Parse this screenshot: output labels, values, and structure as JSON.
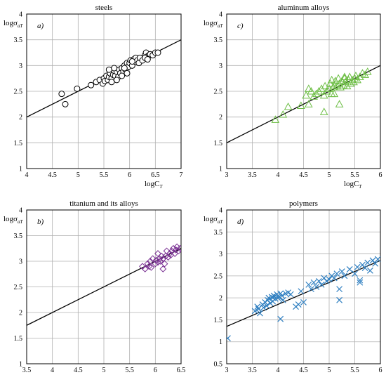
{
  "chart_data": [
    {
      "type": "scatter",
      "title": "steels",
      "panel_label": "a)",
      "xlabel": "logC",
      "xlabel_sub": "T",
      "ylabel": "logσ",
      "ylabel_sub": "aT",
      "xlim": [
        4,
        7
      ],
      "ylim": [
        1,
        4
      ],
      "xticks": [
        "4",
        "4.5",
        "5",
        "5.5",
        "6",
        "6.5",
        "7"
      ],
      "yticks": [
        "1",
        "1.5",
        "2",
        "2.5",
        "3",
        "3.5",
        "4"
      ],
      "grid": true,
      "marker": "circle",
      "color": "#000000",
      "fit_line": {
        "x": [
          4,
          7
        ],
        "y": [
          2.0,
          3.5
        ]
      },
      "x": [
        4.68,
        4.75,
        4.98,
        5.25,
        5.35,
        5.42,
        5.48,
        5.5,
        5.52,
        5.55,
        5.58,
        5.6,
        5.62,
        5.65,
        5.68,
        5.7,
        5.72,
        5.75,
        5.78,
        5.8,
        5.82,
        5.85,
        5.88,
        5.9,
        5.92,
        5.95,
        5.98,
        6.0,
        6.02,
        6.05,
        6.08,
        6.1,
        6.12,
        6.15,
        6.18,
        6.2,
        6.25,
        6.3,
        6.32,
        6.35,
        6.38,
        6.4,
        6.45,
        6.5,
        6.55,
        5.6,
        5.7,
        5.75,
        5.85,
        5.95,
        6.3,
        6.35,
        5.65,
        5.9,
        6.05
      ],
      "y": [
        2.45,
        2.25,
        2.55,
        2.62,
        2.68,
        2.72,
        2.65,
        2.75,
        2.7,
        2.8,
        2.72,
        2.78,
        2.85,
        2.75,
        2.82,
        2.9,
        2.8,
        2.88,
        2.78,
        2.92,
        2.85,
        2.95,
        2.88,
        3.0,
        2.92,
        3.05,
        2.98,
        3.05,
        3.1,
        3.0,
        3.12,
        3.08,
        3.15,
        3.1,
        3.05,
        3.15,
        3.1,
        3.2,
        3.25,
        3.18,
        3.2,
        3.22,
        3.2,
        3.25,
        3.25,
        2.92,
        2.95,
        2.72,
        2.8,
        2.85,
        3.15,
        3.12,
        2.68,
        2.95,
        3.08
      ]
    },
    {
      "type": "scatter",
      "title": "aluminum alloys",
      "panel_label": "c)",
      "xlabel": "logC",
      "xlabel_sub": "T",
      "ylabel": "logσ",
      "ylabel_sub": "aT",
      "xlim": [
        3,
        6
      ],
      "ylim": [
        1,
        4
      ],
      "xticks": [
        "3",
        "3.5",
        "4",
        "4.5",
        "5",
        "5.5",
        "6"
      ],
      "yticks": [
        "1",
        "1.5",
        "2",
        "2.5",
        "3",
        "3.5",
        "4"
      ],
      "grid": true,
      "marker": "triangle",
      "color": "#6dbe45",
      "fit_line": {
        "x": [
          3,
          6
        ],
        "y": [
          1.5,
          3.0
        ]
      },
      "x": [
        3.95,
        4.1,
        4.2,
        4.45,
        4.55,
        4.6,
        4.65,
        4.7,
        4.75,
        4.8,
        4.85,
        4.9,
        4.92,
        4.95,
        5.0,
        5.02,
        5.05,
        5.08,
        5.1,
        5.12,
        5.15,
        5.18,
        5.2,
        5.22,
        5.25,
        5.28,
        5.3,
        5.32,
        5.35,
        5.38,
        5.4,
        5.42,
        5.45,
        5.48,
        5.5,
        5.52,
        5.55,
        5.6,
        5.65,
        5.7,
        5.75,
        5.2,
        4.9,
        4.6,
        5.05,
        5.3,
        5.1
      ],
      "y": [
        1.95,
        2.05,
        2.2,
        2.22,
        2.42,
        2.25,
        2.5,
        2.4,
        2.45,
        2.5,
        2.55,
        2.42,
        2.6,
        2.5,
        2.55,
        2.65,
        2.45,
        2.58,
        2.62,
        2.7,
        2.6,
        2.75,
        2.65,
        2.58,
        2.7,
        2.62,
        2.75,
        2.68,
        2.6,
        2.72,
        2.78,
        2.65,
        2.72,
        2.68,
        2.75,
        2.8,
        2.72,
        2.78,
        2.85,
        2.82,
        2.88,
        2.25,
        2.1,
        2.55,
        2.72,
        2.78,
        2.45
      ]
    },
    {
      "type": "scatter",
      "title": "titanium and its alloys",
      "panel_label": "b)",
      "xlabel": "logC",
      "xlabel_sub": "T",
      "ylabel": "logσ",
      "ylabel_sub": "aT",
      "xlim": [
        3.5,
        6.5
      ],
      "ylim": [
        1,
        4
      ],
      "xticks": [
        "3.5",
        "4",
        "4.5",
        "5",
        "5.5",
        "6",
        "6.5"
      ],
      "yticks": [
        "1",
        "1.5",
        "2",
        "2.5",
        "3",
        "3.5",
        "4"
      ],
      "grid": true,
      "marker": "diamond",
      "color": "#7b3294",
      "fit_line": {
        "x": [
          3.5,
          6.5
        ],
        "y": [
          1.75,
          3.25
        ]
      },
      "x": [
        5.75,
        5.8,
        5.85,
        5.9,
        5.92,
        5.95,
        6.0,
        6.02,
        6.05,
        6.08,
        6.1,
        6.12,
        6.15,
        6.18,
        6.2,
        6.22,
        6.25,
        6.28,
        6.3,
        6.32,
        6.35,
        6.38,
        6.4,
        6.42,
        6.45,
        6.48,
        6.15,
        5.88,
        6.05
      ],
      "y": [
        2.9,
        2.85,
        2.95,
        3.0,
        2.88,
        3.05,
        2.95,
        3.02,
        2.98,
        3.05,
        3.0,
        3.1,
        3.05,
        2.95,
        3.1,
        3.2,
        3.08,
        3.15,
        3.12,
        3.2,
        3.25,
        3.15,
        3.22,
        3.28,
        3.2,
        3.25,
        2.85,
        2.9,
        3.15
      ]
    },
    {
      "type": "scatter",
      "title": "polymers",
      "panel_label": "d)",
      "xlabel": "logC",
      "xlabel_sub": "T",
      "ylabel": "logσ",
      "ylabel_sub": "aT",
      "xlim": [
        3,
        6
      ],
      "ylim": [
        0.5,
        4
      ],
      "xticks": [
        "3",
        "3.5",
        "4",
        "4.5",
        "5",
        "5.5",
        "6"
      ],
      "yticks": [
        "0.5",
        "1",
        "1.5",
        "2",
        "2.5",
        "3",
        "3.5",
        "4"
      ],
      "grid": true,
      "marker": "cross",
      "color": "#2f7fc1",
      "fit_line": {
        "x": [
          3,
          6
        ],
        "y": [
          1.35,
          2.85
        ]
      },
      "x": [
        3.02,
        3.55,
        3.6,
        3.62,
        3.65,
        3.7,
        3.72,
        3.75,
        3.78,
        3.8,
        3.82,
        3.85,
        3.88,
        3.9,
        3.92,
        3.95,
        3.98,
        4.0,
        4.02,
        4.05,
        4.08,
        4.1,
        4.15,
        4.2,
        4.25,
        4.35,
        4.45,
        4.5,
        4.6,
        4.65,
        4.7,
        4.75,
        4.8,
        4.85,
        4.9,
        4.95,
        5.0,
        5.05,
        5.1,
        5.15,
        5.2,
        5.25,
        5.3,
        5.4,
        5.5,
        5.55,
        5.6,
        5.65,
        5.7,
        5.75,
        5.8,
        5.85,
        5.9,
        5.95,
        4.05,
        5.2,
        5.6,
        3.9,
        4.4
      ],
      "y": [
        1.08,
        1.7,
        1.8,
        1.75,
        1.65,
        1.85,
        1.78,
        1.9,
        1.82,
        1.95,
        2.0,
        1.88,
        2.02,
        1.92,
        2.05,
        1.98,
        2.08,
        2.0,
        2.02,
        2.1,
        2.05,
        1.95,
        2.1,
        2.12,
        2.08,
        1.8,
        2.15,
        1.9,
        2.3,
        2.2,
        2.35,
        2.25,
        2.38,
        2.3,
        2.45,
        2.38,
        2.42,
        2.5,
        2.45,
        2.55,
        2.2,
        2.6,
        2.5,
        2.65,
        2.55,
        2.7,
        2.4,
        2.75,
        2.68,
        2.8,
        2.62,
        2.85,
        2.78,
        2.88,
        1.52,
        1.95,
        2.35,
        2.0,
        1.85
      ]
    }
  ]
}
